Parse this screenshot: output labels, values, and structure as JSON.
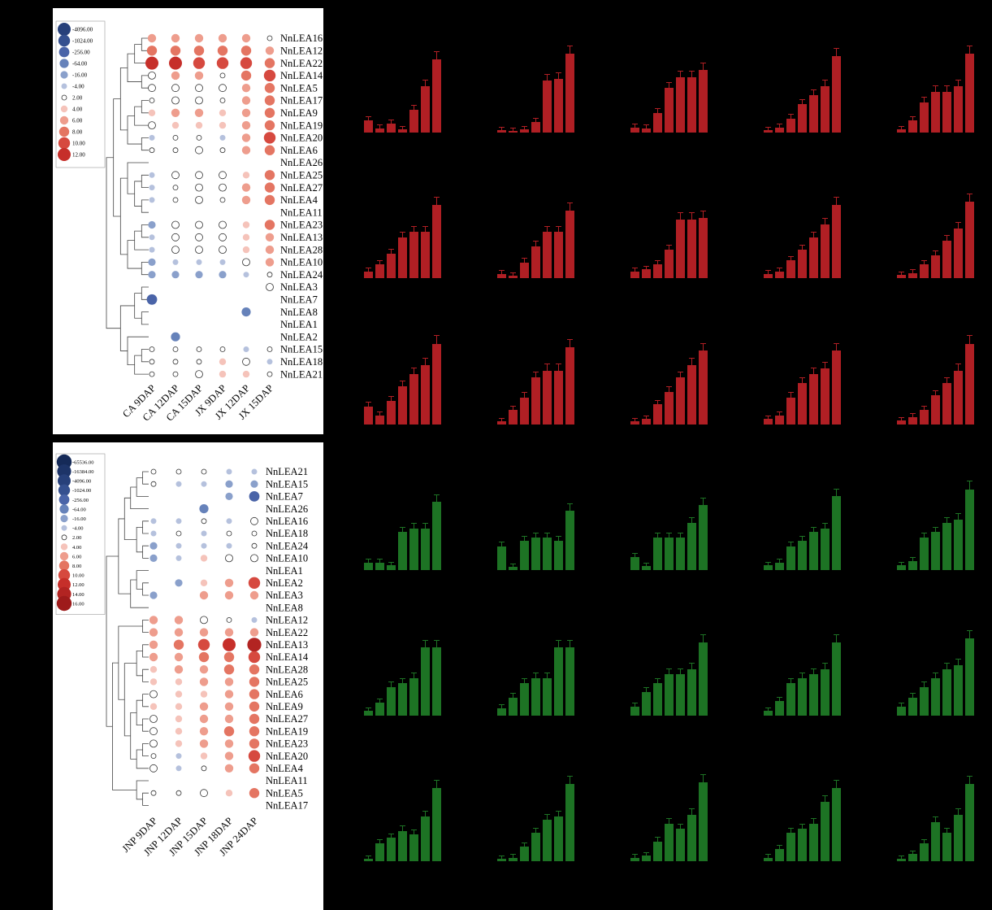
{
  "figure": {
    "background": "#000000"
  },
  "chart_data": [
    {
      "type": "heatmap",
      "subtype": "bubble",
      "name": "log2fc-bubble-heatmap-ca-jx",
      "columns": [
        "CA 9DAP",
        "CA 12DAP",
        "CA 15DAP",
        "JX 9DAP",
        "JX 12DAP",
        "JX 15DAP"
      ],
      "rows": [
        "NnLEA16",
        "NnLEA12",
        "NnLEA22",
        "NnLEA14",
        "NnLEA5",
        "NnLEA17",
        "NnLEA9",
        "NnLEA19",
        "NnLEA20",
        "NnLEA6",
        "NnLEA26",
        "NnLEA25",
        "NnLEA27",
        "NnLEA4",
        "NnLEA11",
        "NnLEA23",
        "NnLEA13",
        "NnLEA28",
        "NnLEA10",
        "NnLEA24",
        "NnLEA3",
        "NnLEA7",
        "NnLEA8",
        "NnLEA1",
        "NnLEA2",
        "NnLEA15",
        "NnLEA18",
        "NnLEA21"
      ],
      "values": [
        [
          6,
          6,
          6,
          6,
          6,
          2
        ],
        [
          8,
          8,
          8,
          8,
          8,
          6
        ],
        [
          12,
          12,
          10,
          10,
          10,
          8
        ],
        [
          3,
          6,
          6,
          2,
          8,
          10
        ],
        [
          3,
          3,
          3,
          3,
          6,
          8
        ],
        [
          2,
          3,
          3,
          2,
          6,
          8
        ],
        [
          4,
          6,
          6,
          4,
          6,
          8
        ],
        [
          3,
          4,
          4,
          4,
          6,
          8
        ],
        [
          -4,
          2,
          2,
          -4,
          6,
          10
        ],
        [
          2,
          2,
          3,
          2,
          6,
          8
        ],
        [
          0,
          0,
          0,
          0,
          0,
          0
        ],
        [
          -4,
          3,
          3,
          3,
          4,
          8
        ],
        [
          -4,
          2,
          3,
          3,
          6,
          8
        ],
        [
          -4,
          2,
          3,
          2,
          6,
          8
        ],
        [
          0,
          0,
          0,
          0,
          0,
          0
        ],
        [
          -16,
          3,
          3,
          3,
          4,
          8
        ],
        [
          -4,
          3,
          3,
          3,
          4,
          6
        ],
        [
          -4,
          3,
          3,
          3,
          4,
          6
        ],
        [
          -16,
          -4,
          -4,
          -4,
          3,
          6
        ],
        [
          -16,
          -16,
          -16,
          -16,
          -4,
          2
        ],
        [
          0,
          0,
          0,
          0,
          0,
          3
        ],
        [
          -256,
          0,
          0,
          0,
          0,
          0
        ],
        [
          0,
          0,
          0,
          0,
          -64,
          0
        ],
        [
          0,
          0,
          0,
          0,
          0,
          0
        ],
        [
          0,
          -64,
          0,
          0,
          0,
          0
        ],
        [
          2,
          2,
          2,
          2,
          -4,
          2
        ],
        [
          2,
          2,
          2,
          4,
          3,
          -4
        ],
        [
          2,
          2,
          3,
          4,
          4,
          2
        ]
      ],
      "legend": {
        "labels": [
          "-4096.00",
          "-1024.00",
          "-256.00",
          "-64.00",
          "-16.00",
          "-4.00",
          "2.00",
          "4.00",
          "6.00",
          "8.00",
          "10.00",
          "12.00"
        ],
        "values": [
          -4096,
          -1024,
          -256,
          -64,
          -16,
          -4,
          2,
          4,
          6,
          8,
          10,
          12
        ]
      },
      "palette": {
        "pos": {
          "2": "#ffffff",
          "3": "#ffffff",
          "4": "#f5c3ba",
          "6": "#ee9d8d",
          "8": "#e47562",
          "10": "#d6493f",
          "12": "#c62f2a",
          "14": "#b22422",
          "16": "#9e1b1b"
        },
        "neg": {
          "4": "#b5c1dd",
          "16": "#8aa0cb",
          "64": "#6682ba",
          "256": "#4a64a8",
          "1024": "#35508f",
          "4096": "#27407a",
          "16384": "#1d3468",
          "65536": "#152a58"
        }
      },
      "dendrogram": [
        [
          [
            [
              [
                [
                  0,
                  1
                ],
                2
              ],
              [
                3,
                4
              ]
            ],
            [
              [
                [
                  5,
                  6
                ],
                7
              ],
              [
                8,
                9
              ]
            ]
          ],
          [
            [
              10,
              [
                [
                  11,
                  12
                ],
                [
                  13,
                  14
                ]
              ]
            ],
            [
              [
                [
                  15,
                  16
                ],
                17
              ],
              [
                18,
                19
              ]
            ]
          ]
        ],
        [
          [
            [
              20,
              21
            ],
            [
              22,
              23
            ]
          ],
          [
            24,
            [
              [
                25,
                26
              ],
              27
            ]
          ]
        ]
      ]
    },
    {
      "type": "heatmap",
      "subtype": "bubble",
      "name": "log2fc-bubble-heatmap-jnp",
      "columns": [
        "JNP 9DAP",
        "JNP 12DAP",
        "JNP 15DAP",
        "JNP 18DAP",
        "JNP 24DAP"
      ],
      "rows": [
        "NnLEA21",
        "NnLEA15",
        "NnLEA7",
        "NnLEA26",
        "NnLEA16",
        "NnLEA18",
        "NnLEA24",
        "NnLEA10",
        "NnLEA1",
        "NnLEA2",
        "NnLEA3",
        "NnLEA8",
        "NnLEA12",
        "NnLEA22",
        "NnLEA13",
        "NnLEA14",
        "NnLEA28",
        "NnLEA25",
        "NnLEA6",
        "NnLEA9",
        "NnLEA27",
        "NnLEA19",
        "NnLEA23",
        "NnLEA20",
        "NnLEA4",
        "NnLEA11",
        "NnLEA5",
        "NnLEA17"
      ],
      "values": [
        [
          2,
          2,
          2,
          -4,
          -4
        ],
        [
          2,
          -4,
          -4,
          -16,
          -16
        ],
        [
          0,
          0,
          0,
          -16,
          -256
        ],
        [
          0,
          0,
          -64,
          0,
          0
        ],
        [
          -4,
          -4,
          2,
          -4,
          3
        ],
        [
          -4,
          2,
          -4,
          2,
          2
        ],
        [
          -16,
          -4,
          -4,
          -4,
          2
        ],
        [
          -16,
          -4,
          4,
          3,
          3
        ],
        [
          0,
          0,
          0,
          0,
          0
        ],
        [
          0,
          -16,
          4,
          6,
          10
        ],
        [
          -16,
          0,
          6,
          6,
          6
        ],
        [
          0,
          0,
          0,
          0,
          0
        ],
        [
          6,
          6,
          3,
          2,
          -4
        ],
        [
          6,
          6,
          6,
          6,
          6
        ],
        [
          6,
          8,
          10,
          12,
          14
        ],
        [
          6,
          6,
          8,
          8,
          10
        ],
        [
          4,
          6,
          6,
          8,
          8
        ],
        [
          4,
          4,
          6,
          6,
          8
        ],
        [
          3,
          4,
          4,
          6,
          8
        ],
        [
          4,
          4,
          6,
          6,
          8
        ],
        [
          3,
          4,
          6,
          6,
          8
        ],
        [
          3,
          4,
          6,
          8,
          8
        ],
        [
          3,
          4,
          6,
          6,
          8
        ],
        [
          2,
          -4,
          4,
          6,
          10
        ],
        [
          3,
          -4,
          2,
          6,
          8
        ],
        [
          0,
          0,
          0,
          0,
          0
        ],
        [
          2,
          2,
          3,
          4,
          8
        ],
        [
          0,
          0,
          0,
          0,
          0
        ]
      ],
      "legend": {
        "labels": [
          "-65536.00",
          "-16384.00",
          "-4096.00",
          "-1024.00",
          "-256.00",
          "-64.00",
          "-16.00",
          "-4.00",
          "2.00",
          "4.00",
          "6.00",
          "8.00",
          "10.00",
          "12.00",
          "14.00",
          "16.00"
        ],
        "values": [
          -65536,
          -16384,
          -4096,
          -1024,
          -256,
          -64,
          -16,
          -4,
          2,
          4,
          6,
          8,
          10,
          12,
          14,
          16
        ]
      },
      "palette": {
        "pos": {
          "2": "#ffffff",
          "3": "#ffffff",
          "4": "#f5c3ba",
          "6": "#ee9d8d",
          "8": "#e47562",
          "10": "#d6493f",
          "12": "#c62f2a",
          "14": "#b22422",
          "16": "#9e1b1b"
        },
        "neg": {
          "4": "#b5c1dd",
          "16": "#8aa0cb",
          "64": "#6682ba",
          "256": "#4a64a8",
          "1024": "#35508f",
          "4096": "#27407a",
          "16384": "#1d3468",
          "65536": "#152a58"
        }
      },
      "dendrogram": [
        [
          [
            [
              [
                [
                  0,
                  1
                ],
                2
              ],
              3
            ],
            [
              [
                4,
                5
              ],
              [
                6,
                7
              ]
            ]
          ],
          [
            [
              8,
              [
                9,
                10
              ]
            ],
            11
          ]
        ],
        [
          [
            [
              12,
              13
            ],
            [
              [
                [
                  14,
                  15
                ],
                [
                  16,
                  17
                ]
              ],
              [
                [
                  [
                    18,
                    19
                  ],
                  [
                    20,
                    21
                  ]
                ],
                [
                  [
                    22,
                    23
                  ],
                  24
                ]
              ]
            ]
          ],
          [
            25,
            [
              26,
              27
            ]
          ]
        ]
      ]
    },
    {
      "type": "bar",
      "name": "expression-bar-chart-grid",
      "layout": {
        "rows": 6,
        "cols": 5
      },
      "red_color": "#b01f24",
      "green_color": "#1d7324",
      "red_charts": [
        [
          1.4,
          0.5,
          1.0,
          0.4,
          2.6,
          5.2,
          8.2
        ],
        [
          0.3,
          0.2,
          0.4,
          1.2,
          5.8,
          6.0,
          8.8
        ],
        [
          0.6,
          0.5,
          2.2,
          5.0,
          6.2,
          6.2,
          7.0
        ],
        [
          0.3,
          0.6,
          1.6,
          3.2,
          4.2,
          5.2,
          8.6
        ],
        [
          0.4,
          1.4,
          3.4,
          4.6,
          4.6,
          5.2,
          8.8
        ],
        [
          0.8,
          1.6,
          2.8,
          4.6,
          5.2,
          5.2,
          8.2
        ],
        [
          0.5,
          0.3,
          1.8,
          3.6,
          5.2,
          5.2,
          7.6
        ],
        [
          0.8,
          1.0,
          1.6,
          3.2,
          6.6,
          6.6,
          6.8
        ],
        [
          0.5,
          0.8,
          2.0,
          3.2,
          4.6,
          6.0,
          8.2
        ],
        [
          0.4,
          0.6,
          1.6,
          2.6,
          4.2,
          5.6,
          8.6
        ],
        [
          2.0,
          1.0,
          2.6,
          4.2,
          5.6,
          6.6,
          9.0
        ],
        [
          0.3,
          1.6,
          3.0,
          5.2,
          6.0,
          6.0,
          8.6
        ],
        [
          0.3,
          0.6,
          2.2,
          3.6,
          5.2,
          6.6,
          8.2
        ],
        [
          0.6,
          1.0,
          3.0,
          4.6,
          5.6,
          6.2,
          8.2
        ],
        [
          0.4,
          0.8,
          1.6,
          3.2,
          4.6,
          6.0,
          9.0
        ]
      ],
      "green_charts": [
        [
          0.8,
          0.8,
          0.5,
          4.2,
          4.6,
          4.6,
          7.6
        ],
        [
          2.6,
          0.3,
          3.2,
          3.6,
          3.6,
          3.2,
          6.6
        ],
        [
          1.4,
          0.4,
          3.6,
          3.6,
          3.6,
          5.2,
          7.2
        ],
        [
          0.5,
          0.8,
          2.6,
          3.2,
          4.2,
          4.6,
          8.2
        ],
        [
          0.5,
          1.0,
          3.6,
          4.2,
          5.2,
          5.6,
          9.0
        ],
        [
          0.5,
          1.4,
          3.2,
          3.6,
          4.2,
          7.6,
          7.6
        ],
        [
          0.8,
          2.0,
          3.6,
          4.2,
          4.2,
          7.6,
          7.6
        ],
        [
          1.0,
          2.6,
          3.6,
          4.6,
          4.6,
          5.2,
          8.2
        ],
        [
          0.5,
          1.6,
          3.6,
          4.2,
          4.6,
          5.2,
          8.2
        ],
        [
          1.0,
          2.0,
          3.2,
          4.2,
          5.2,
          5.6,
          8.6
        ],
        [
          0.3,
          2.0,
          2.6,
          3.4,
          3.0,
          5.0,
          8.2
        ],
        [
          0.3,
          0.4,
          1.6,
          3.2,
          4.6,
          5.0,
          8.6
        ],
        [
          0.4,
          0.6,
          2.2,
          4.2,
          3.6,
          5.2,
          8.8
        ],
        [
          0.4,
          1.4,
          3.2,
          3.6,
          4.2,
          6.6,
          8.2
        ],
        [
          0.3,
          0.8,
          2.0,
          4.4,
          3.2,
          5.2,
          8.6
        ]
      ]
    }
  ]
}
